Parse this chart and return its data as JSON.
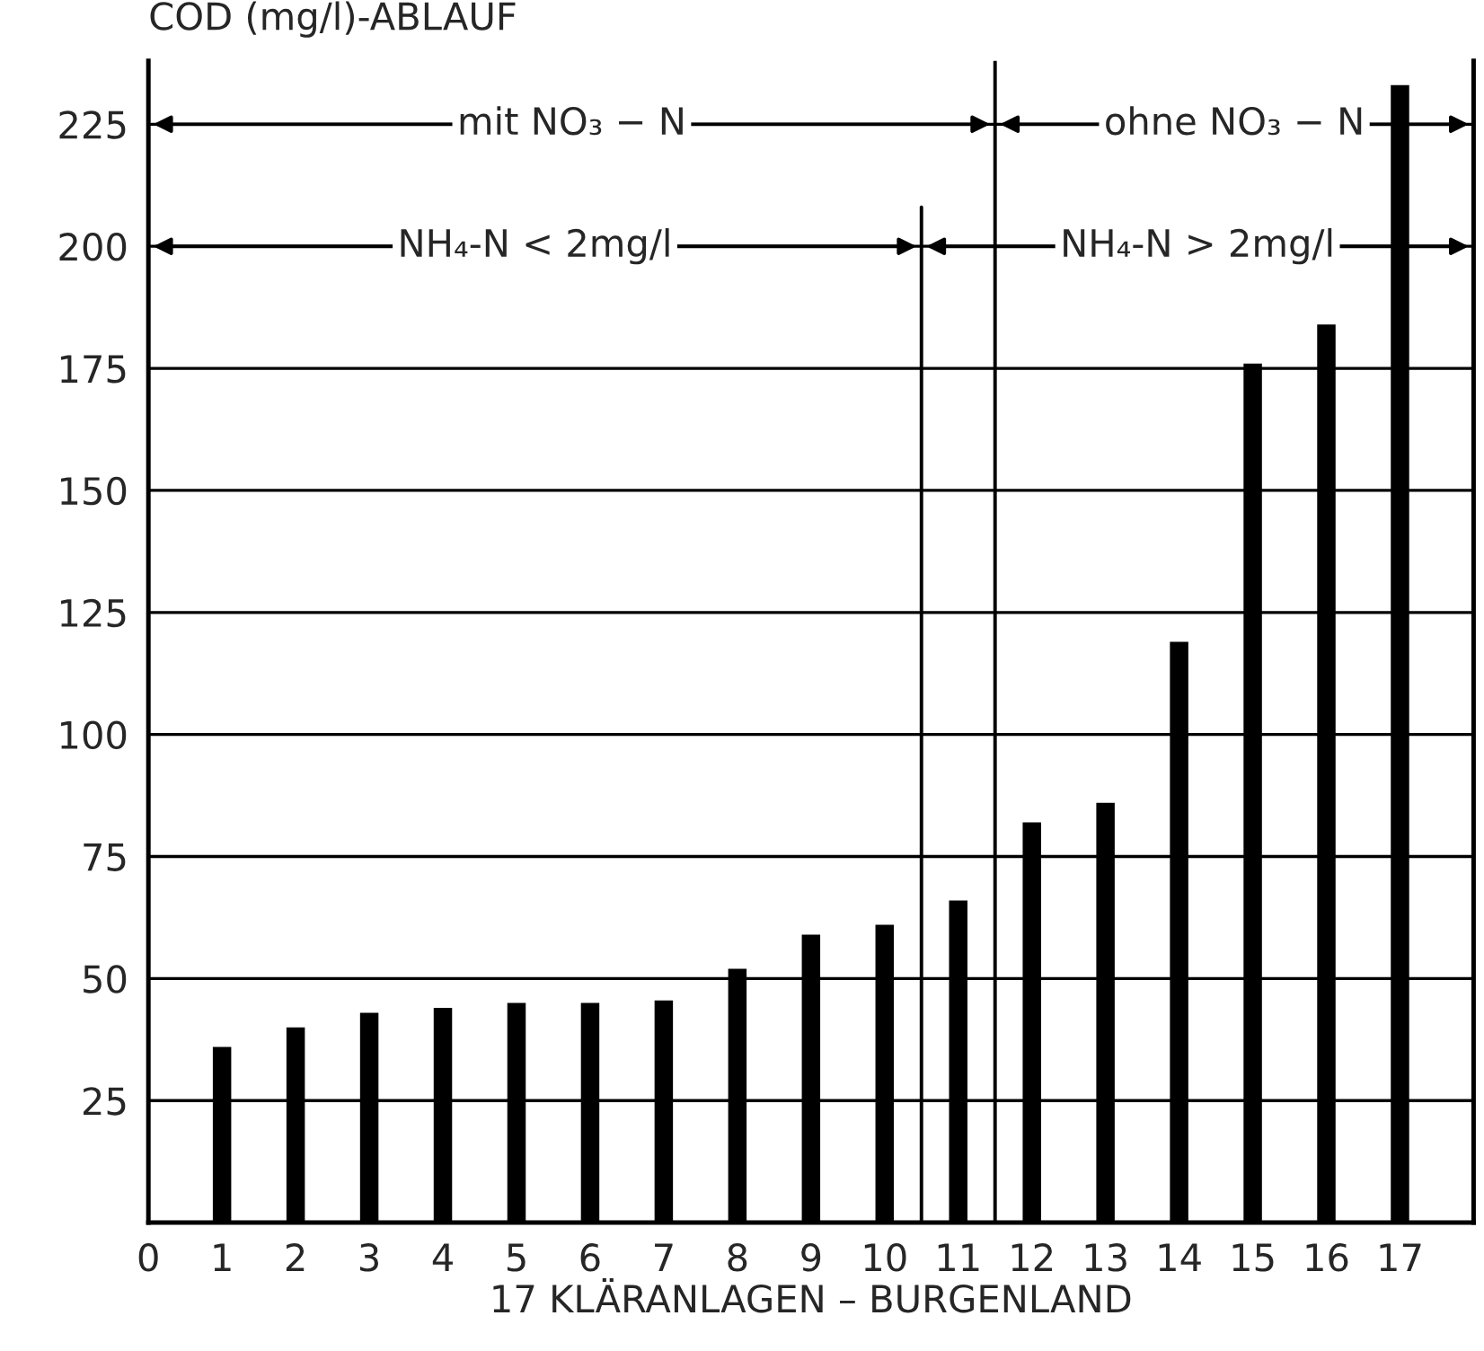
{
  "chart_data": {
    "type": "bar",
    "ylabel": "COD (mg/l)-ABLAUF",
    "xlabel": "17 KLÄRANLAGEN – BURGENLAND",
    "x": [
      1,
      2,
      3,
      4,
      5,
      6,
      7,
      8,
      9,
      10,
      11,
      12,
      13,
      14,
      15,
      16,
      17
    ],
    "values": [
      36,
      40,
      43,
      44,
      45,
      45,
      45.5,
      52,
      59,
      61,
      66,
      82,
      86,
      119,
      176,
      184,
      233
    ],
    "color": "#000000",
    "xlim": [
      0,
      18
    ],
    "xticks": [
      0,
      1,
      2,
      3,
      4,
      5,
      6,
      7,
      8,
      9,
      10,
      11,
      12,
      13,
      14,
      15,
      16,
      17
    ],
    "ylim": [
      0,
      238
    ],
    "yticks": [
      25,
      50,
      75,
      100,
      125,
      150,
      175,
      200,
      225
    ],
    "grid": "y",
    "ref_lines": [
      {
        "axis": "x",
        "value": 10.5,
        "color": "#000000"
      },
      {
        "axis": "x",
        "value": 11.5,
        "color": "#000000"
      }
    ],
    "annotations": [
      "mit NO₃ − N",
      "ohne NO₃ − N",
      "NH₄-N < 2mg/l",
      "NH₄-N > 2mg/l"
    ]
  }
}
